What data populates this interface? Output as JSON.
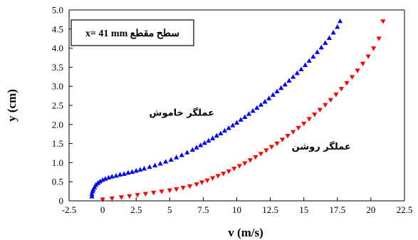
{
  "chart_data": {
    "type": "scatter",
    "xlabel": "v (m/s)",
    "ylabel": "y (cm)",
    "xlim": [
      -2.5,
      22.5
    ],
    "ylim": [
      0,
      5.0
    ],
    "x_ticks": [
      "-2.5",
      "0",
      "2.5",
      "5",
      "7.5",
      "10",
      "12.5",
      "15",
      "17.5",
      "20",
      "22.5"
    ],
    "y_ticks": [
      "0",
      "0.5",
      "1.0",
      "1.5",
      "2.0",
      "2.5",
      "3.0",
      "3.5",
      "4.0",
      "4.5",
      "5.0"
    ],
    "grid": false,
    "legend_box_text": "x= 41 mm سطح مقطع",
    "series": [
      {
        "name": "عملگر خاموش",
        "marker": "triangle-up",
        "color": "#0000ff",
        "x": [
          -0.8,
          -0.8,
          -0.75,
          -0.7,
          -0.6,
          -0.5,
          -0.35,
          -0.2,
          0.0,
          0.2,
          0.45,
          0.7,
          1.0,
          1.3,
          1.6,
          1.9,
          2.2,
          2.5,
          2.8,
          3.1,
          3.5,
          3.9,
          4.3,
          4.7,
          5.1,
          5.5,
          5.9,
          6.3,
          6.7,
          7.0,
          7.3,
          7.6,
          7.9,
          8.2,
          8.5,
          8.8,
          9.1,
          9.4,
          9.7,
          10.0,
          10.3,
          10.6,
          10.9,
          11.2,
          11.5,
          11.8,
          12.1,
          12.4,
          12.7,
          13.0,
          13.3,
          13.6,
          13.9,
          14.2,
          14.5,
          14.8,
          15.1,
          15.4,
          15.7,
          16.0,
          16.3,
          16.6,
          16.9,
          17.2,
          17.5,
          17.7
        ],
        "y": [
          0.12,
          0.18,
          0.25,
          0.3,
          0.36,
          0.42,
          0.47,
          0.51,
          0.55,
          0.58,
          0.61,
          0.64,
          0.66,
          0.69,
          0.71,
          0.74,
          0.76,
          0.79,
          0.82,
          0.85,
          0.89,
          0.93,
          0.98,
          1.03,
          1.08,
          1.14,
          1.2,
          1.27,
          1.34,
          1.4,
          1.46,
          1.52,
          1.58,
          1.64,
          1.71,
          1.77,
          1.84,
          1.91,
          1.98,
          2.05,
          2.13,
          2.2,
          2.28,
          2.36,
          2.44,
          2.52,
          2.6,
          2.69,
          2.78,
          2.87,
          2.96,
          3.05,
          3.15,
          3.25,
          3.35,
          3.45,
          3.56,
          3.67,
          3.78,
          3.9,
          4.02,
          4.14,
          4.27,
          4.41,
          4.56,
          4.71
        ]
      },
      {
        "name": "عملگر روشن",
        "marker": "triangle-down",
        "color": "#ff0000",
        "x": [
          0.0,
          0.7,
          1.4,
          2.0,
          2.6,
          3.2,
          3.8,
          4.4,
          5.0,
          5.5,
          6.0,
          6.5,
          7.0,
          7.4,
          7.8,
          8.2,
          8.6,
          9.0,
          9.4,
          9.8,
          10.2,
          10.6,
          11.0,
          11.4,
          11.8,
          12.2,
          12.6,
          13.0,
          13.4,
          13.8,
          14.2,
          14.6,
          15.0,
          15.4,
          15.8,
          16.2,
          16.6,
          17.0,
          17.4,
          17.8,
          18.2,
          18.6,
          19.0,
          19.4,
          19.8,
          20.2,
          20.6,
          20.9
        ],
        "y": [
          0.03,
          0.06,
          0.09,
          0.12,
          0.15,
          0.18,
          0.21,
          0.24,
          0.27,
          0.3,
          0.34,
          0.38,
          0.43,
          0.48,
          0.53,
          0.59,
          0.65,
          0.71,
          0.77,
          0.84,
          0.91,
          0.98,
          1.06,
          1.14,
          1.23,
          1.32,
          1.41,
          1.5,
          1.6,
          1.7,
          1.8,
          1.91,
          2.02,
          2.14,
          2.26,
          2.38,
          2.51,
          2.64,
          2.78,
          2.93,
          3.08,
          3.24,
          3.41,
          3.59,
          3.78,
          3.99,
          4.25,
          4.7
        ]
      }
    ],
    "annotations": [
      {
        "text": "عملگر خاموش",
        "x": 5.9,
        "y": 2.23
      },
      {
        "text": "عملگر روشن",
        "x": 16.3,
        "y": 1.34
      }
    ]
  }
}
